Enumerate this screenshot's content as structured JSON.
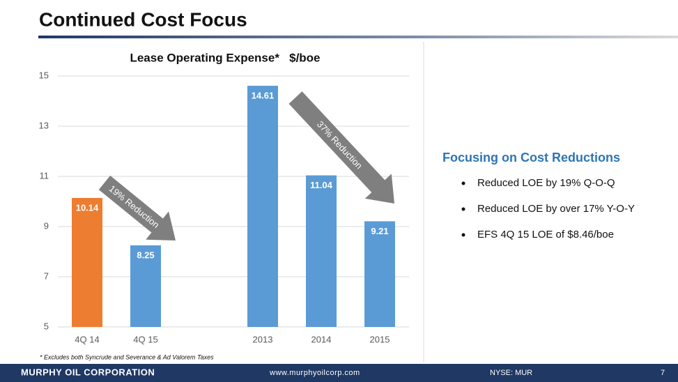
{
  "header": {
    "title": "Continued Cost Focus"
  },
  "chart_data": {
    "type": "bar",
    "title": "Lease Operating Expense*   $/boe",
    "categories": [
      "4Q 14",
      "4Q 15",
      null,
      "2013",
      "2014",
      "2015"
    ],
    "values": [
      10.14,
      8.25,
      null,
      14.61,
      11.04,
      9.21
    ],
    "colors": [
      "#ED7D31",
      "#5B9BD5",
      "#5B9BD5",
      "#5B9BD5",
      "#5B9BD5",
      "#5B9BD5"
    ],
    "ylim": [
      5,
      15
    ],
    "yticks": [
      5,
      7,
      9,
      11,
      13,
      15
    ],
    "grid": true,
    "annotations": [
      "19% Reduction",
      "37% Reduction"
    ]
  },
  "panel": {
    "heading": "Focusing on Cost Reductions",
    "bullets": [
      "Reduced LOE by 19% Q-O-Q",
      "Reduced LOE by over 17% Y-O-Y",
      "EFS 4Q 15 LOE of $8.46/boe"
    ]
  },
  "footnote": "* Excludes both Syncrude and Severance & Ad Valorem Taxes",
  "footer": {
    "company": "MURPHY OIL CORPORATION",
    "website": "www.murphyoilcorp.com",
    "ticker": "NYSE: MUR",
    "page": "7"
  }
}
